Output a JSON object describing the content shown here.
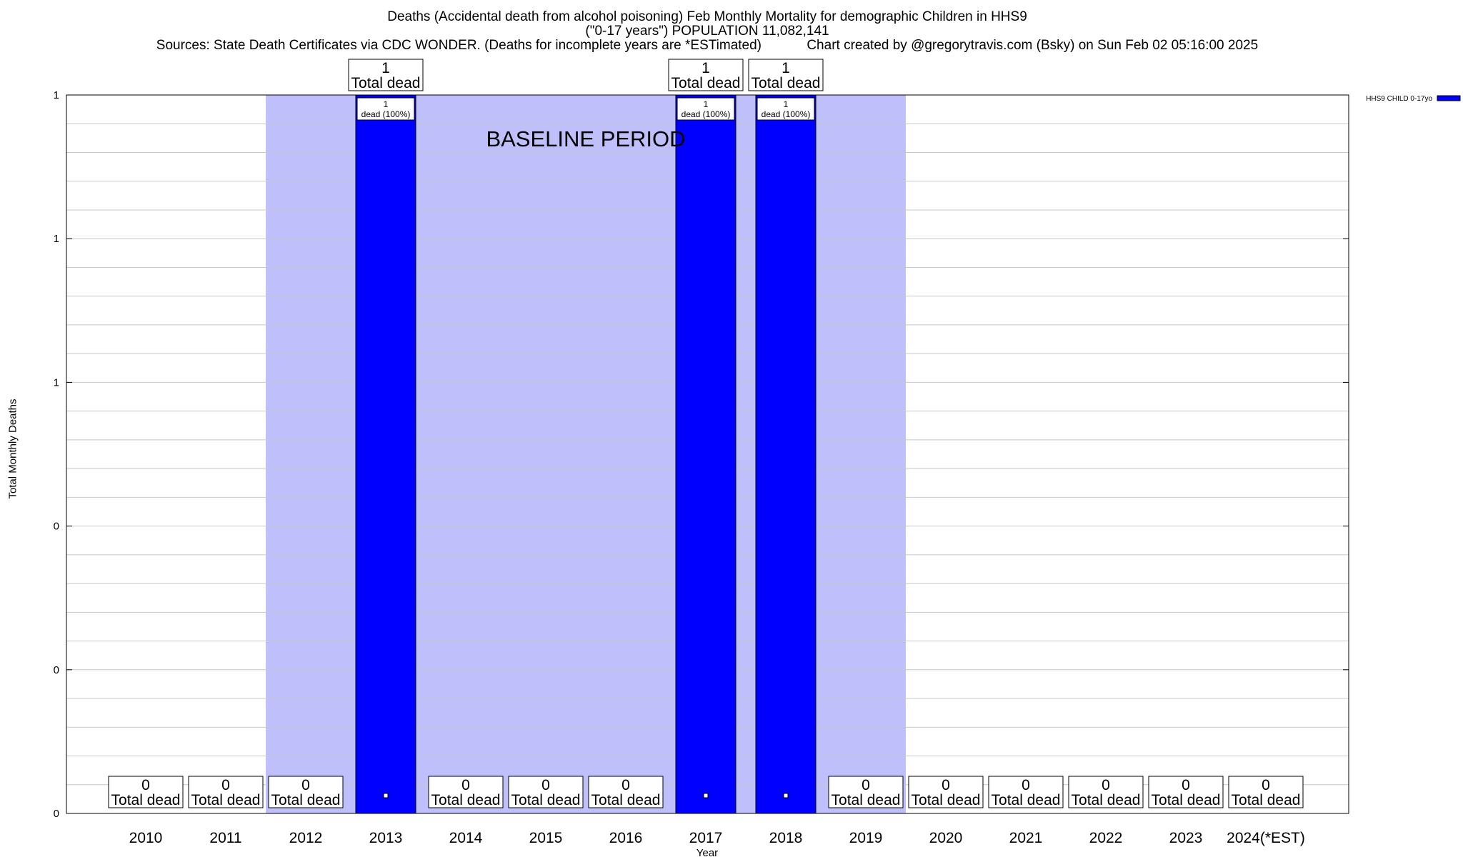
{
  "header": {
    "title_line1": "Deaths (Accidental death from alcohol poisoning) Feb Monthly Mortality for demographic Children in HHS9",
    "title_line2": "(\"0-17 years\") POPULATION 11,082,141",
    "title_line3": "Sources: State Death Certificates via CDC WONDER. (Deaths for incomplete years are *ESTimated)            Chart created by @gregorytravis.com (Bsky) on Sun Feb 02 05:16:00 2025"
  },
  "chart_data": {
    "type": "bar",
    "xlabel": "Year",
    "ylabel": "Total Monthly Deaths",
    "ylim": [
      0,
      1
    ],
    "y_tick_labels": [
      "0",
      "0",
      "0",
      "1",
      "1",
      "1"
    ],
    "categories": [
      "2010",
      "2011",
      "2012",
      "2013",
      "2014",
      "2015",
      "2016",
      "2017",
      "2018",
      "2019",
      "2020",
      "2021",
      "2022",
      "2023",
      "2024(*EST)"
    ],
    "series": [
      {
        "name": "HHS9 CHILD 0-17yo",
        "color": "#0000ff",
        "values": [
          0,
          0,
          0,
          1,
          0,
          0,
          0,
          1,
          1,
          0,
          0,
          0,
          0,
          0,
          0
        ]
      }
    ],
    "total_labels": [
      "0",
      "0",
      "0",
      "1",
      "0",
      "0",
      "0",
      "1",
      "1",
      "0",
      "0",
      "0",
      "0",
      "0",
      "0"
    ],
    "total_suffix": "Total dead",
    "bar_inner_labels": [
      "",
      "",
      "",
      "1\ndead (100%)",
      "",
      "",
      "",
      "1\ndead (100%)",
      "1\ndead (100%)",
      "",
      "",
      "",
      "",
      "",
      ""
    ],
    "baseline": {
      "label": "BASELINE PERIOD",
      "from": "2012",
      "to": "2019",
      "color": "#bfbffb"
    },
    "legend_position": "top-right",
    "grid": true
  }
}
